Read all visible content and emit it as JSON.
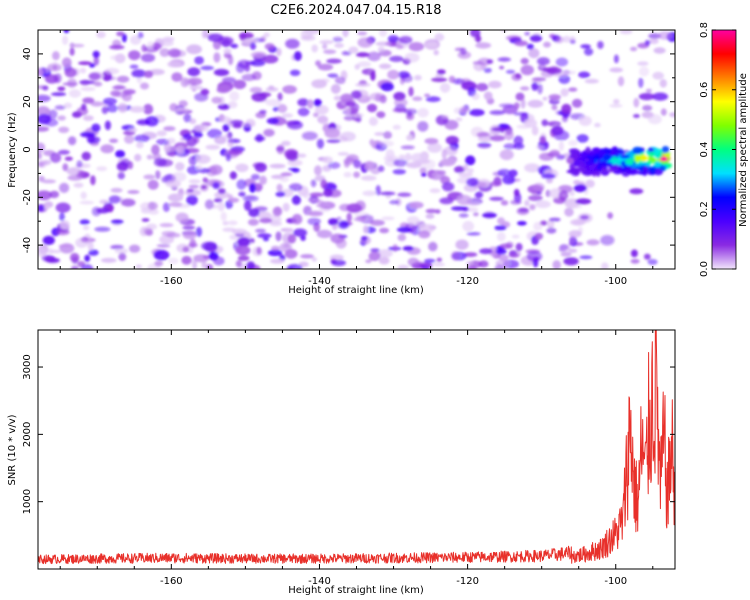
{
  "title": "C2E6.2024.047.04.15.R18",
  "chart_data": [
    {
      "type": "heatmap",
      "xlabel": "Height of straight line (km)",
      "ylabel": "Frequency (Hz)",
      "xlim": [
        -178,
        -92
      ],
      "ylim": [
        -50,
        50
      ],
      "x_ticks": [
        -160,
        -140,
        -120,
        -100
      ],
      "y_ticks": [
        -40,
        -20,
        0,
        20,
        40
      ],
      "colorbar": {
        "label": "Normalized spectral amplitude",
        "range": [
          0.0,
          0.8
        ],
        "ticks": [
          "0.0",
          "0.2",
          "0.4",
          "0.6",
          "0.8"
        ],
        "colors": [
          "#f2e6fb",
          "#8a2be2",
          "#4b00ff",
          "#0000ff",
          "#00e0ff",
          "#00ff80",
          "#80ff00",
          "#ffff00",
          "#ff8000",
          "#ff0000",
          "#ff00a0"
        ]
      },
      "noise_level": "0.0–0.15 (violet speckle across full range)",
      "signal_region": {
        "x": [
          -106,
          -93
        ],
        "y": [
          -10,
          0
        ],
        "peak_amplitude": 0.8,
        "peak_x": -93.5,
        "peak_y": -4
      }
    },
    {
      "type": "line",
      "xlabel": "Height of straight line (km)",
      "ylabel": "SNR (10 * v/v)",
      "xlim": [
        -178,
        -92
      ],
      "ylim": [
        0,
        3550
      ],
      "x_ticks": [
        -160,
        -140,
        -120,
        -100
      ],
      "y_ticks": [
        1000,
        2000,
        3000
      ],
      "color": "#e8302a",
      "series": [
        {
          "x": [
            -178,
            -170,
            -160,
            -150,
            -140,
            -130,
            -120,
            -110,
            -106,
            -104,
            -102,
            -100,
            -99,
            -98.5,
            -98,
            -97.5,
            -97,
            -96.5,
            -96,
            -95.5,
            -95,
            -94.5,
            -94,
            -93.5,
            -93,
            -92.5,
            -92
          ],
          "y": [
            140,
            150,
            160,
            150,
            150,
            160,
            170,
            190,
            230,
            280,
            380,
            650,
            900,
            1900,
            2650,
            1500,
            1200,
            2300,
            1700,
            2700,
            3200,
            3550,
            1400,
            2400,
            1300,
            2300,
            1500
          ]
        }
      ]
    }
  ]
}
